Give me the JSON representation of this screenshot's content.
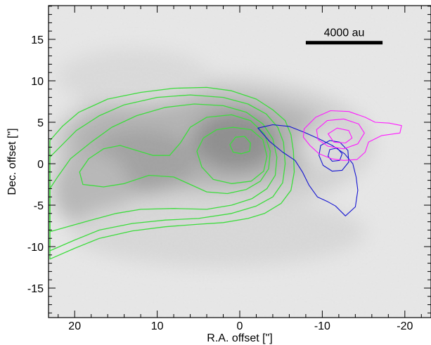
{
  "chart_data": {
    "type": "contour",
    "xlabel": "R.A. offset [\"]",
    "ylabel": "Dec. offset [\"]",
    "xlim": [
      23,
      -23
    ],
    "ylim": [
      -18.5,
      19
    ],
    "x_ticks": [
      20,
      10,
      0,
      -10,
      -20
    ],
    "x_tick_labels": [
      "20",
      "10",
      "0",
      "-10",
      "-20"
    ],
    "y_ticks": [
      15,
      10,
      5,
      0,
      -5,
      -10,
      -15
    ],
    "y_tick_labels": [
      "15",
      "10",
      "5",
      "0",
      "-5",
      "-10",
      "-15"
    ],
    "grid": false,
    "background": "grayscale intensity map",
    "scale_bar": {
      "label": "4000 au",
      "x_start": -8,
      "x_end": -17.3,
      "y": 14.6
    },
    "colors": {
      "green": "#3ddc3d",
      "blue": "#1414d2",
      "magenta": "#ff1aff"
    },
    "contours": [
      {
        "color": "green",
        "level": 1,
        "points": [
          [
            23,
            -11.5
          ],
          [
            20,
            -10.2
          ],
          [
            17,
            -9
          ],
          [
            13,
            -8.1
          ],
          [
            9,
            -7.6
          ],
          [
            5,
            -7.3
          ],
          [
            2,
            -7.1
          ],
          [
            -1,
            -6.6
          ],
          [
            -3,
            -6
          ],
          [
            -5,
            -4.8
          ],
          [
            -6.2,
            -3.2
          ],
          [
            -6.6,
            -1
          ],
          [
            -6.5,
            1.5
          ],
          [
            -6.2,
            3.5
          ],
          [
            -5.5,
            5.2
          ],
          [
            -4,
            6.5
          ],
          [
            -2,
            7.8
          ],
          [
            1,
            8.8
          ],
          [
            4,
            9.2
          ],
          [
            8,
            9.1
          ],
          [
            12,
            8.6
          ],
          [
            16,
            7.8
          ],
          [
            19.5,
            6.2
          ],
          [
            21.5,
            4.5
          ],
          [
            23,
            2.8
          ]
        ]
      },
      {
        "color": "green",
        "level": 2,
        "points": [
          [
            23,
            -10.5
          ],
          [
            20,
            -9.2
          ],
          [
            17,
            -8
          ],
          [
            13,
            -7.2
          ],
          [
            9,
            -6.8
          ],
          [
            5,
            -6.6
          ],
          [
            1,
            -6
          ],
          [
            -2,
            -5.1
          ],
          [
            -4,
            -4
          ],
          [
            -5.2,
            -2.3
          ],
          [
            -5.5,
            0
          ],
          [
            -5.3,
            2.6
          ],
          [
            -4.6,
            4.4
          ],
          [
            -3.2,
            6
          ],
          [
            -1,
            7.2
          ],
          [
            2,
            8
          ],
          [
            6,
            8.3
          ],
          [
            10,
            8
          ],
          [
            14,
            7.1
          ],
          [
            17,
            5.8
          ],
          [
            19.8,
            4
          ],
          [
            21.8,
            2
          ],
          [
            23,
            0.8
          ]
        ]
      },
      {
        "color": "green",
        "level": 3,
        "points": [
          [
            23,
            -8.2
          ],
          [
            20.5,
            -7.5
          ],
          [
            18,
            -6.8
          ],
          [
            15,
            -6
          ],
          [
            12,
            -5.5
          ],
          [
            8,
            -5.4
          ],
          [
            4,
            -5.5
          ],
          [
            1,
            -5
          ],
          [
            -1.5,
            -4.2
          ],
          [
            -3.3,
            -3
          ],
          [
            -4.3,
            -1.4
          ],
          [
            -4.5,
            0.8
          ],
          [
            -4,
            3
          ],
          [
            -2.8,
            4.8
          ],
          [
            -0.8,
            6.2
          ],
          [
            2,
            7
          ],
          [
            5.5,
            7.2
          ],
          [
            9,
            6.8
          ],
          [
            12.5,
            5.8
          ],
          [
            15.5,
            4.4
          ],
          [
            18,
            2.6
          ],
          [
            20.5,
            0.6
          ],
          [
            22,
            -1.5
          ],
          [
            23,
            -3
          ]
        ]
      },
      {
        "color": "green",
        "level": 4,
        "points": [
          [
            19,
            -2.5
          ],
          [
            16.5,
            -2.8
          ],
          [
            14,
            -2.4
          ],
          [
            11,
            -1.4
          ],
          [
            8,
            -1.6
          ],
          [
            6,
            -2.5
          ],
          [
            4,
            -3.4
          ],
          [
            1.5,
            -3.6
          ],
          [
            -0.8,
            -3.1
          ],
          [
            -2.5,
            -2.1
          ],
          [
            -3.5,
            -0.6
          ],
          [
            -3.7,
            1.5
          ],
          [
            -3,
            3.6
          ],
          [
            -1.3,
            5.2
          ],
          [
            1,
            5.9
          ],
          [
            4,
            5.6
          ],
          [
            6,
            4.4
          ],
          [
            7.2,
            2.5
          ],
          [
            8.5,
            1
          ],
          [
            10.5,
            1
          ],
          [
            12.5,
            1.6
          ],
          [
            14.5,
            2.2
          ],
          [
            16.5,
            1.8
          ],
          [
            18.3,
            0.6
          ],
          [
            19.4,
            -1
          ]
        ]
      },
      {
        "color": "green",
        "level": 5,
        "points": [
          [
            5.2,
            1.5
          ],
          [
            4.6,
            -0.4
          ],
          [
            3.2,
            -1.9
          ],
          [
            1,
            -2.4
          ],
          [
            -1.4,
            -2.1
          ],
          [
            -2.9,
            -0.9
          ],
          [
            -3.3,
            0.9
          ],
          [
            -2.8,
            2.9
          ],
          [
            -1.4,
            4.1
          ],
          [
            0.8,
            4.4
          ],
          [
            2.8,
            4.1
          ],
          [
            4.4,
            3.1
          ]
        ]
      },
      {
        "color": "green",
        "level": 6,
        "points": [
          [
            1.2,
            2.3
          ],
          [
            0.8,
            1.4
          ],
          [
            -0.2,
            1.2
          ],
          [
            -1.2,
            1.5
          ],
          [
            -1.3,
            2.5
          ],
          [
            -0.6,
            3.3
          ],
          [
            0.5,
            3.2
          ]
        ]
      },
      {
        "color": "blue",
        "level": 1,
        "points": [
          [
            -2.2,
            4.3
          ],
          [
            -4,
            4.7
          ],
          [
            -6,
            4.5
          ],
          [
            -7.8,
            3.8
          ],
          [
            -9.6,
            3
          ],
          [
            -11.2,
            2.2
          ],
          [
            -12.7,
            1.2
          ],
          [
            -13.7,
            0
          ],
          [
            -14.1,
            -1.6
          ],
          [
            -14.3,
            -3.2
          ],
          [
            -14,
            -5.2
          ],
          [
            -12.8,
            -6.3
          ],
          [
            -11.6,
            -5.1
          ],
          [
            -10.7,
            -4.6
          ],
          [
            -9.4,
            -4
          ],
          [
            -8.4,
            -2.6
          ],
          [
            -7.6,
            -1
          ],
          [
            -6.7,
            0.4
          ],
          [
            -5.2,
            1.4
          ],
          [
            -3.6,
            2.7
          ]
        ]
      },
      {
        "color": "blue",
        "level": 2,
        "points": [
          [
            -9.8,
            2.2
          ],
          [
            -10.9,
            2.8
          ],
          [
            -12.1,
            2.6
          ],
          [
            -13.1,
            1.6
          ],
          [
            -13.2,
            0.2
          ],
          [
            -12.4,
            -0.8
          ],
          [
            -11.2,
            -0.9
          ],
          [
            -10.1,
            -0.2
          ],
          [
            -9.6,
            1
          ]
        ]
      },
      {
        "color": "blue",
        "level": 3,
        "points": [
          [
            -10.9,
            1.7
          ],
          [
            -11.8,
            1.9
          ],
          [
            -12.4,
            1.2
          ],
          [
            -12.1,
            0.4
          ],
          [
            -11.2,
            0.3
          ],
          [
            -10.7,
            0.9
          ]
        ]
      },
      {
        "color": "magenta",
        "level": 1,
        "points": [
          [
            -7.8,
            4.2
          ],
          [
            -9.2,
            5.6
          ],
          [
            -11,
            6.4
          ],
          [
            -13.2,
            6.3
          ],
          [
            -15.2,
            5.6
          ],
          [
            -16.4,
            5
          ],
          [
            -18.1,
            4.9
          ],
          [
            -19.6,
            4.6
          ],
          [
            -19.4,
            3.7
          ],
          [
            -17.2,
            3.4
          ],
          [
            -15.6,
            2.6
          ],
          [
            -15.2,
            1.4
          ],
          [
            -14.2,
            0.5
          ],
          [
            -12.6,
            0.4
          ],
          [
            -11.1,
            0.6
          ],
          [
            -9.6,
            1.2
          ],
          [
            -8.5,
            2.2
          ],
          [
            -7.7,
            3.2
          ]
        ]
      },
      {
        "color": "magenta",
        "level": 2,
        "points": [
          [
            -9.3,
            4.1
          ],
          [
            -10.6,
            5.2
          ],
          [
            -12.6,
            5.4
          ],
          [
            -14.4,
            4.8
          ],
          [
            -15.1,
            3.7
          ],
          [
            -14.3,
            2.4
          ],
          [
            -12.6,
            1.8
          ],
          [
            -10.7,
            2.1
          ],
          [
            -9.5,
            2.9
          ]
        ]
      },
      {
        "color": "magenta",
        "level": 3,
        "points": [
          [
            -10.7,
            3.6
          ],
          [
            -11.8,
            4.3
          ],
          [
            -13.2,
            4
          ],
          [
            -13.6,
            3.1
          ],
          [
            -12.8,
            2.5
          ],
          [
            -11.4,
            2.6
          ]
        ]
      }
    ]
  }
}
